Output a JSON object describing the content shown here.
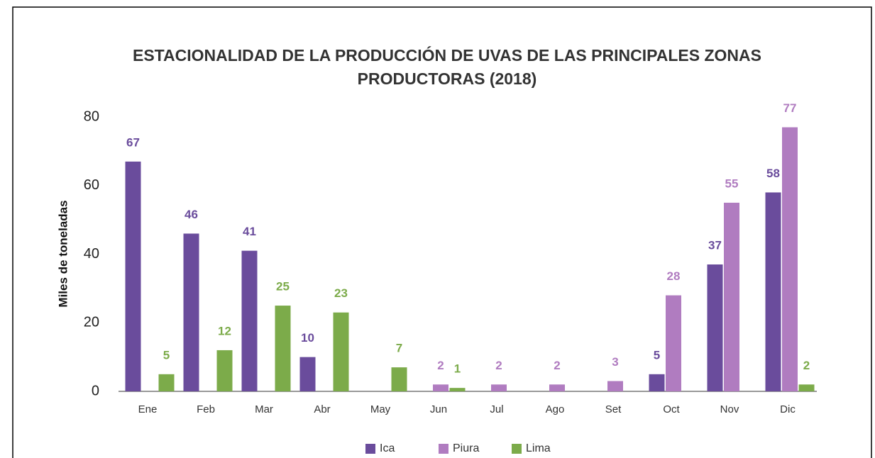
{
  "chart_data": {
    "type": "bar",
    "title": "ESTACIONALIDAD DE LA PRODUCCIÓN DE UVAS DE LAS PRINCIPALES ZONAS PRODUCTORAS (2018)",
    "y_label": "Miles de toneladas",
    "categories": [
      "Ene",
      "Feb",
      "Mar",
      "Abr",
      "May",
      "Jun",
      "Jul",
      "Ago",
      "Set",
      "Oct",
      "Nov",
      "Dic"
    ],
    "series": [
      {
        "name": "Ica",
        "color": "#6a4c9c",
        "values": [
          67,
          46,
          41,
          10,
          0,
          0,
          0,
          0,
          0,
          5,
          37,
          58
        ]
      },
      {
        "name": "Piura",
        "color": "#b07cc0",
        "values": [
          0,
          0,
          0,
          0,
          0,
          2,
          2,
          2,
          3,
          28,
          55,
          77
        ]
      },
      {
        "name": "Lima",
        "color": "#7cab4a",
        "values": [
          5,
          12,
          25,
          23,
          7,
          1,
          0,
          0,
          0,
          0,
          0,
          2
        ]
      }
    ],
    "ylim": [
      0,
      80
    ],
    "yticks": [
      0,
      20,
      40,
      60,
      80
    ],
    "grid": false,
    "legend": "bottom"
  }
}
